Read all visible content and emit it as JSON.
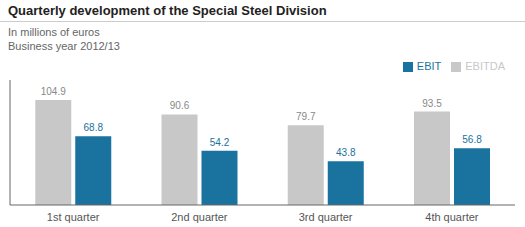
{
  "chart_data": {
    "type": "bar",
    "title": "Quarterly development of the Special Steel Division",
    "subtitle": [
      "In millions of euros",
      "Business year 2012/13"
    ],
    "categories": [
      "1st quarter",
      "2nd quarter",
      "3rd quarter",
      "4th quarter"
    ],
    "series": [
      {
        "name": "EBITDA",
        "color": "#c8c8c8",
        "values": [
          104.9,
          90.6,
          79.7,
          93.5
        ]
      },
      {
        "name": "EBIT",
        "color": "#1a729e",
        "values": [
          68.8,
          54.2,
          43.8,
          56.8
        ]
      }
    ],
    "ylim": [
      0,
      125
    ],
    "grid": false,
    "legend": "upper right",
    "data_labels": true,
    "tick_labels": "x"
  }
}
